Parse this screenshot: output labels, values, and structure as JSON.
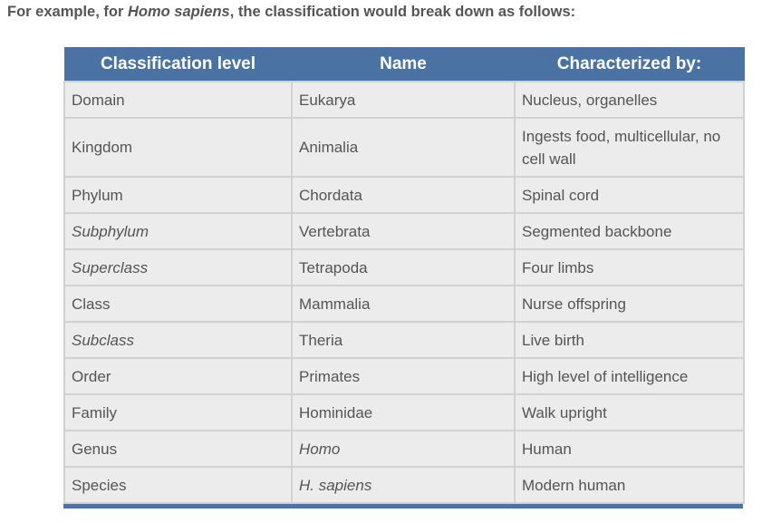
{
  "intro": {
    "prefix": "For example, for ",
    "species": "Homo sapiens",
    "suffix": ", the classification would break down as follows:"
  },
  "table": {
    "headers": [
      "Classification level",
      "Name",
      "Characterized by:"
    ],
    "rows": [
      {
        "level": "Domain",
        "name": "Eukarya",
        "trait": "Nucleus, organelles"
      },
      {
        "level": "Kingdom",
        "name": "Animalia",
        "trait": "Ingests food, multicellular, no cell wall"
      },
      {
        "level": "Phylum",
        "name": "Chordata",
        "trait": "Spinal cord"
      },
      {
        "level": "Subphylum",
        "name": "Vertebrata",
        "trait": "Segmented backbone"
      },
      {
        "level": "Superclass",
        "name": "Tetrapoda",
        "trait": "Four limbs"
      },
      {
        "level": "Class",
        "name": "Mammalia",
        "trait": "Nurse offspring"
      },
      {
        "level": "Subclass",
        "name": "Theria",
        "trait": "Live birth"
      },
      {
        "level": "Order",
        "name": "Primates",
        "trait": "High level of intelligence"
      },
      {
        "level": "Family",
        "name": "Hominidae",
        "trait": "Walk upright"
      },
      {
        "level": "Genus",
        "name": "Homo",
        "trait": "Human"
      },
      {
        "level": "Species",
        "name": "H. sapiens",
        "trait": "Modern human"
      }
    ]
  },
  "colors": {
    "header_bg": "#4a72a3",
    "cell_bg": "#ececec",
    "cell_border": "#d2d2d2",
    "text": "#555555"
  }
}
